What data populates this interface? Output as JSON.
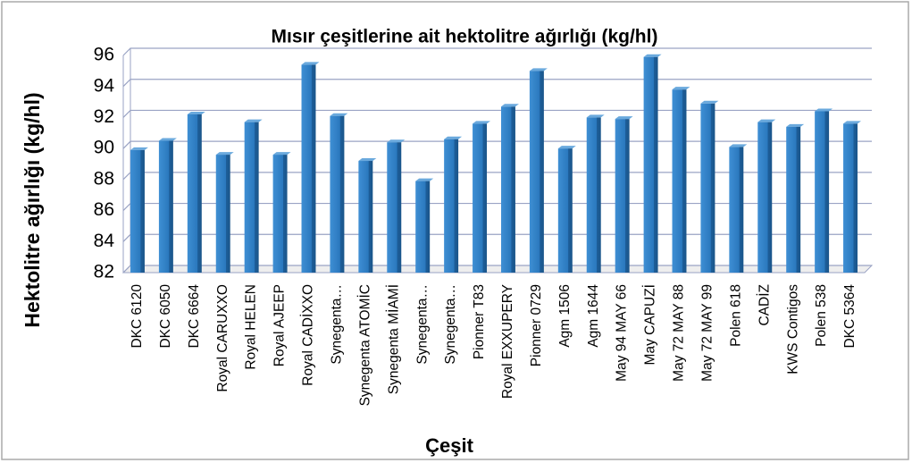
{
  "chart_data": {
    "type": "bar",
    "title": "Mısır çeşitlerine ait hektolitre ağırlığı (kg/hl)",
    "xlabel": "Çeşit",
    "ylabel": "Hektolitre ağırlığı (kg/hl)",
    "categories": [
      "DKC 6120",
      "DKC 6050",
      "DKC 6664",
      "Royal CARUXXO",
      "Royal HELEN",
      "Royal AJEEP",
      "Royal CADİXXO",
      "Synegenta…",
      "Synegenta ATOMİC",
      "Synegenta MİAMİ",
      "Synegenta…",
      "Synegenta…",
      "Pionner T83",
      "Royal EXXUPERY",
      "Pionner 0729",
      "Agm 1506",
      "Agm 1644",
      "May 94 MAY 66",
      "May CAPUZİ",
      "May 72 MAY 88",
      "May 72 MAY 99",
      "Polen 618",
      "CADİZ",
      "KWS Contigos",
      "Polen 538",
      "DKC 5364"
    ],
    "values": [
      89.9,
      90.5,
      92.2,
      89.6,
      91.7,
      89.6,
      95.4,
      92.1,
      89.2,
      90.4,
      87.9,
      90.6,
      91.6,
      92.7,
      95.0,
      90.0,
      92.0,
      91.9,
      95.9,
      93.8,
      92.9,
      90.1,
      91.7,
      91.4,
      92.4,
      91.6
    ],
    "color": "#2f7fc4",
    "ylim": [
      82,
      96
    ],
    "yticks": [
      82,
      84,
      86,
      88,
      90,
      92,
      94,
      96
    ],
    "grid": true
  }
}
